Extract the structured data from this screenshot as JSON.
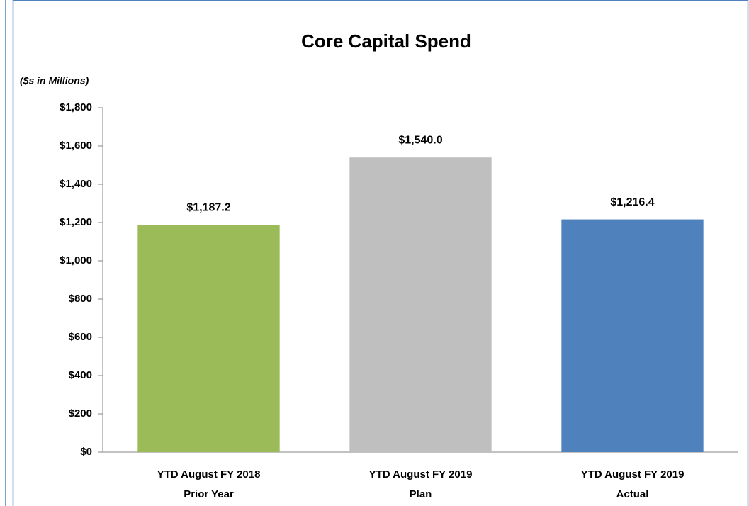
{
  "chart_data": {
    "type": "bar",
    "title": "Core Capital Spend",
    "subtitle": "($s in Millions)",
    "categories": [
      [
        "YTD August FY 2018",
        "Prior Year"
      ],
      [
        "YTD August FY 2019",
        "Plan"
      ],
      [
        "YTD August FY 2019",
        "Actual"
      ]
    ],
    "values": [
      1187.2,
      1540.0,
      1216.4
    ],
    "value_labels": [
      "$1,187.2",
      "$1,540.0",
      "$1,216.4"
    ],
    "colors": [
      "#9bbb59",
      "#bfbfbf",
      "#4f81bd"
    ],
    "ylim": [
      0,
      1800
    ],
    "yticks": [
      {
        "value": 0,
        "label": "$0"
      },
      {
        "value": 200,
        "label": "$200"
      },
      {
        "value": 400,
        "label": "$400"
      },
      {
        "value": 600,
        "label": "$600"
      },
      {
        "value": 800,
        "label": "$800"
      },
      {
        "value": 1000,
        "label": "$1,000"
      },
      {
        "value": 1200,
        "label": "$1,200"
      },
      {
        "value": 1400,
        "label": "$1,400"
      },
      {
        "value": 1600,
        "label": "$1,600"
      },
      {
        "value": 1800,
        "label": "$1,800"
      }
    ],
    "grid": false
  }
}
